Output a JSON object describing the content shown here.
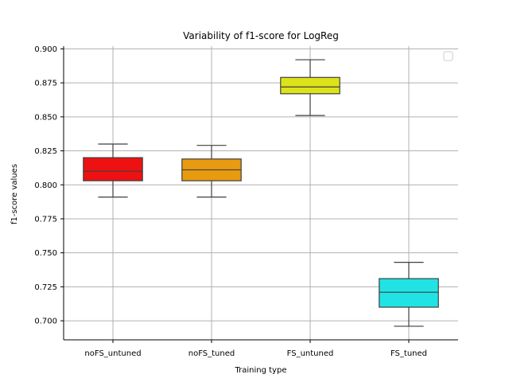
{
  "chart_data": {
    "type": "box",
    "title": "Variability of f1-score  for LogReg",
    "xlabel": "Training type",
    "ylabel": "f1-score values",
    "ylim": [
      0.686,
      0.902
    ],
    "yticks": [
      "0.700",
      "0.725",
      "0.750",
      "0.775",
      "0.800",
      "0.825",
      "0.850",
      "0.875",
      "0.900"
    ],
    "categories": [
      "noFS_untuned",
      "noFS_tuned",
      "FS_untuned",
      "FS_tuned"
    ],
    "grid": true,
    "legend": "top-right (empty)",
    "boxes": [
      {
        "category": "noFS_untuned",
        "whisker_low": 0.791,
        "q1": 0.803,
        "median": 0.81,
        "q3": 0.82,
        "whisker_high": 0.83,
        "color": "#ee1111"
      },
      {
        "category": "noFS_tuned",
        "whisker_low": 0.791,
        "q1": 0.803,
        "median": 0.811,
        "q3": 0.819,
        "whisker_high": 0.829,
        "color": "#e89a10"
      },
      {
        "category": "FS_untuned",
        "whisker_low": 0.851,
        "q1": 0.867,
        "median": 0.872,
        "q3": 0.879,
        "whisker_high": 0.892,
        "color": "#dde31a"
      },
      {
        "category": "FS_tuned",
        "whisker_low": 0.696,
        "q1": 0.71,
        "median": 0.721,
        "q3": 0.731,
        "whisker_high": 0.743,
        "color": "#22e3e3"
      }
    ]
  }
}
